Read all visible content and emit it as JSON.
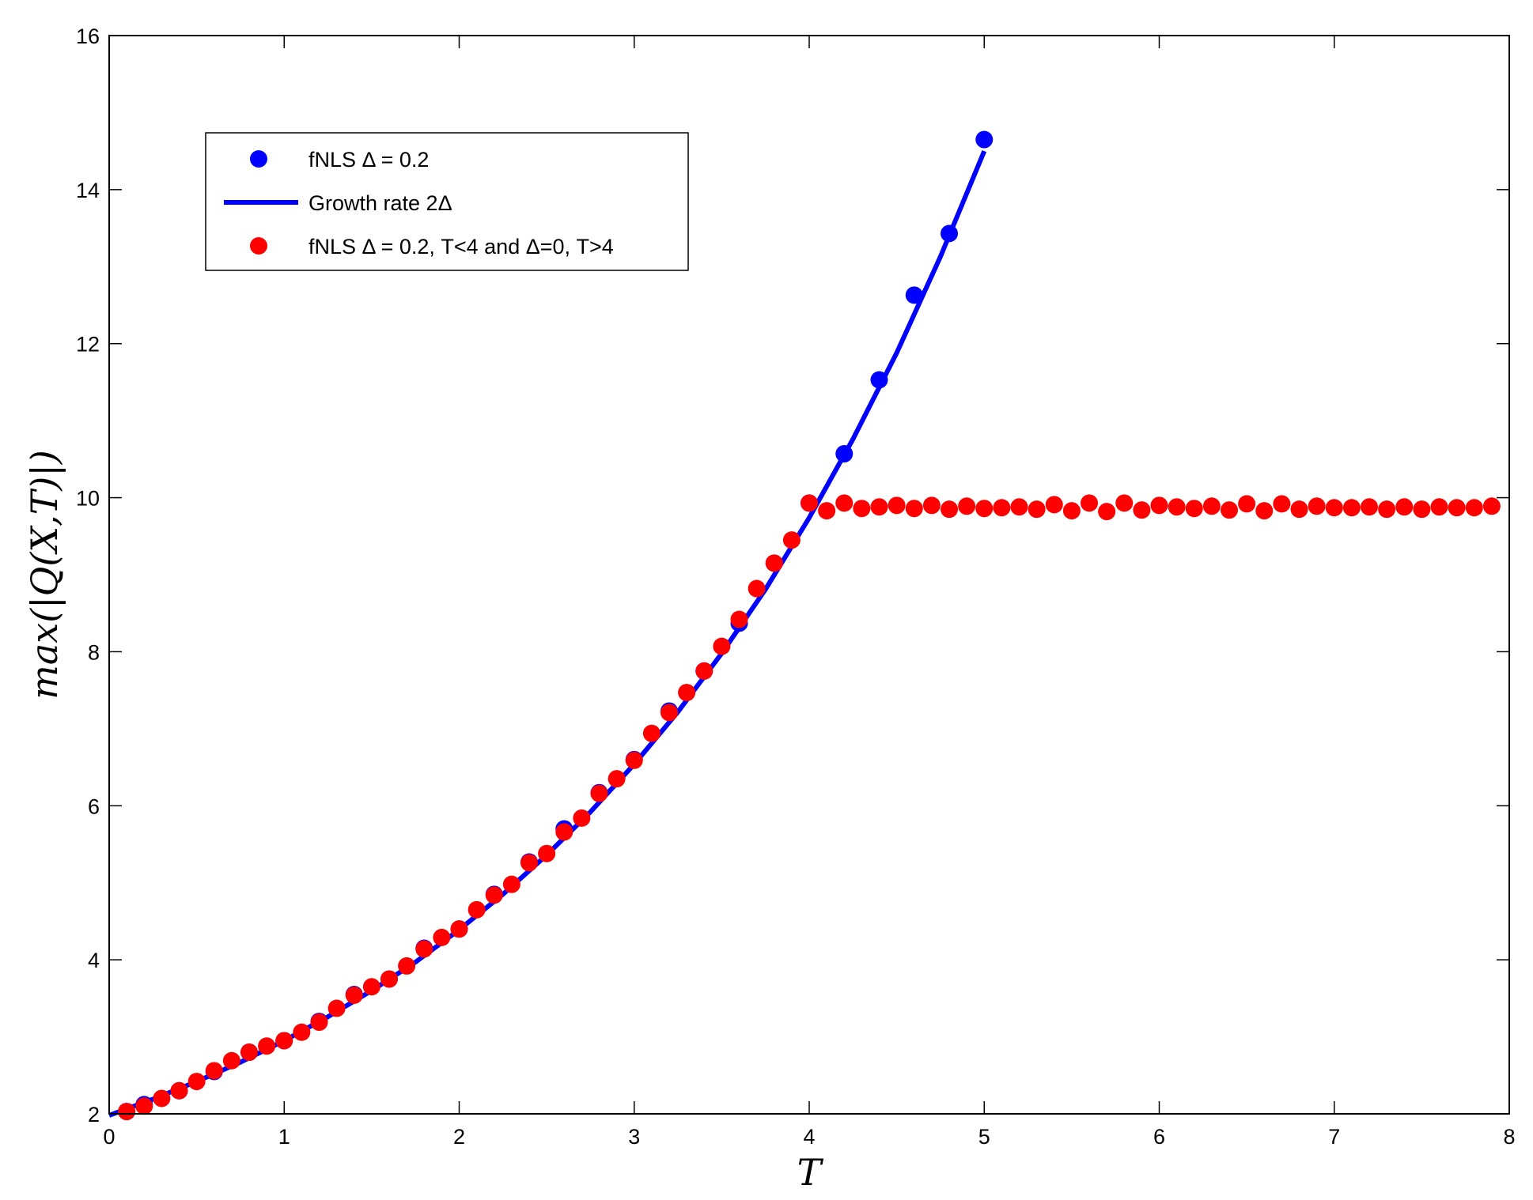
{
  "chart_data": {
    "type": "line",
    "xlabel": "T",
    "ylabel": "max(|Q(X,T)|)",
    "xlim": [
      0,
      8
    ],
    "ylim": [
      2,
      16
    ],
    "xticks": [
      0,
      1,
      2,
      3,
      4,
      5,
      6,
      7,
      8
    ],
    "yticks": [
      2,
      4,
      6,
      8,
      10,
      12,
      14,
      16
    ],
    "grid": false,
    "legend_position": "top-left",
    "series": [
      {
        "name": "fNLS Δ = 0.2",
        "kind": "scatter",
        "color": "#0000ff",
        "x": [
          0.1,
          0.2,
          0.4,
          0.6,
          0.8,
          1.0,
          1.2,
          1.4,
          1.6,
          1.8,
          2.0,
          2.2,
          2.4,
          2.6,
          2.8,
          3.0,
          3.2,
          3.4,
          3.6,
          3.8,
          4.0,
          4.2,
          4.4,
          4.6,
          4.8,
          5.0
        ],
        "y": [
          2.03,
          2.12,
          2.3,
          2.55,
          2.8,
          2.95,
          3.2,
          3.55,
          3.75,
          4.15,
          4.4,
          4.85,
          5.27,
          5.7,
          6.17,
          6.6,
          7.23,
          7.75,
          8.37,
          9.15,
          9.93,
          10.57,
          11.53,
          12.63,
          13.43,
          14.65
        ]
      },
      {
        "name": "Growth rate 2Δ",
        "kind": "line",
        "color": "#0000ff",
        "x": [
          0.0,
          0.25,
          0.5,
          0.75,
          1.0,
          1.25,
          1.5,
          1.75,
          2.0,
          2.25,
          2.5,
          2.75,
          3.0,
          3.25,
          3.5,
          3.75,
          4.0,
          4.25,
          4.5,
          4.75,
          5.0
        ],
        "y": [
          1.98,
          2.19,
          2.42,
          2.67,
          2.95,
          3.26,
          3.6,
          3.97,
          4.39,
          4.85,
          5.36,
          5.92,
          6.54,
          7.22,
          7.98,
          8.81,
          9.74,
          10.76,
          11.88,
          13.13,
          14.5
        ]
      },
      {
        "name": "fNLS Δ = 0.2, T<4 and Δ=0, T>4",
        "kind": "scatter",
        "color": "#ff0000",
        "x": [
          0.1,
          0.2,
          0.3,
          0.4,
          0.5,
          0.6,
          0.7,
          0.8,
          0.9,
          1.0,
          1.1,
          1.2,
          1.3,
          1.4,
          1.5,
          1.6,
          1.7,
          1.8,
          1.9,
          2.0,
          2.1,
          2.2,
          2.3,
          2.4,
          2.5,
          2.6,
          2.7,
          2.8,
          2.9,
          3.0,
          3.1,
          3.2,
          3.3,
          3.4,
          3.5,
          3.6,
          3.7,
          3.8,
          3.9,
          4.0,
          4.1,
          4.2,
          4.3,
          4.4,
          4.5,
          4.6,
          4.7,
          4.8,
          4.9,
          5.0,
          5.1,
          5.2,
          5.3,
          5.4,
          5.5,
          5.6,
          5.7,
          5.8,
          5.9,
          6.0,
          6.1,
          6.2,
          6.3,
          6.4,
          6.5,
          6.6,
          6.7,
          6.8,
          6.9,
          7.0,
          7.1,
          7.2,
          7.3,
          7.4,
          7.5,
          7.6,
          7.7,
          7.8,
          7.9
        ],
        "y": [
          2.03,
          2.1,
          2.2,
          2.3,
          2.42,
          2.56,
          2.69,
          2.8,
          2.88,
          2.95,
          3.06,
          3.19,
          3.37,
          3.54,
          3.65,
          3.75,
          3.92,
          4.14,
          4.29,
          4.4,
          4.65,
          4.84,
          4.98,
          5.26,
          5.38,
          5.66,
          5.84,
          6.16,
          6.35,
          6.59,
          6.94,
          7.21,
          7.47,
          7.75,
          8.07,
          8.42,
          8.82,
          9.15,
          9.45,
          9.93,
          9.83,
          9.93,
          9.86,
          9.88,
          9.9,
          9.86,
          9.9,
          9.85,
          9.89,
          9.86,
          9.87,
          9.88,
          9.85,
          9.91,
          9.83,
          9.93,
          9.82,
          9.93,
          9.84,
          9.9,
          9.88,
          9.86,
          9.89,
          9.84,
          9.92,
          9.83,
          9.92,
          9.85,
          9.89,
          9.87,
          9.87,
          9.88,
          9.85,
          9.88,
          9.85,
          9.88,
          9.87,
          9.87,
          9.89
        ]
      }
    ]
  }
}
